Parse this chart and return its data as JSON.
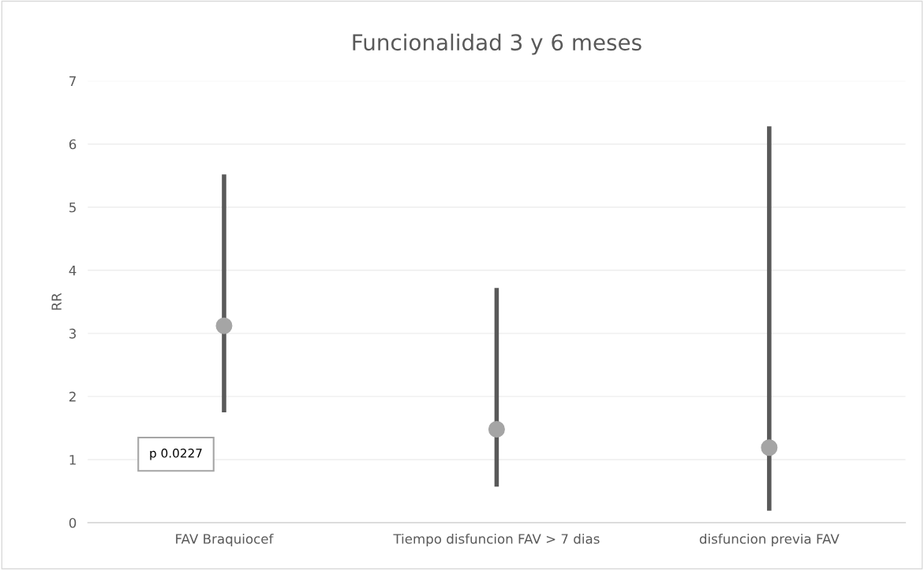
{
  "chart_data": {
    "type": "scatter",
    "title": "Funcionalidad 3 y 6 meses",
    "ylabel": "RR",
    "categories": [
      "FAV Braquiocef",
      "Tiempo disfuncion FAV > 7 dias",
      "disfuncion previa FAV"
    ],
    "series": [
      {
        "color": "#a5a5a5",
        "values": [
          3.12,
          1.48,
          1.19
        ],
        "errors": [
          [
            1.75,
            5.52
          ],
          [
            0.57,
            3.72
          ],
          [
            0.19,
            6.28
          ]
        ]
      }
    ],
    "annotations": [
      "p 0.0227"
    ],
    "ylim": [
      0,
      7
    ],
    "yticks": [
      0,
      1,
      2,
      3,
      4,
      5,
      6,
      7
    ],
    "grid": "y",
    "marker": "circle",
    "legend": false
  }
}
